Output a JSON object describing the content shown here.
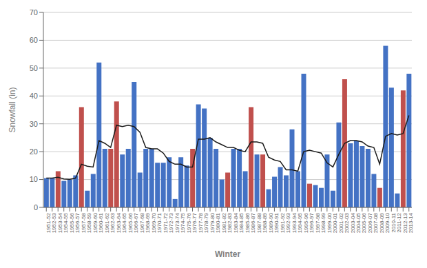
{
  "chart_data": {
    "type": "bar",
    "xlabel": "Winter",
    "ylabel": "Snowfall (in)",
    "categories": [
      "1951-52",
      "1952-53",
      "1953-54",
      "1954-55",
      "1955-56",
      "1956-57",
      "1957-58",
      "1958-59",
      "1959-60",
      "1960-61",
      "1961-62",
      "1962-63",
      "1963-64",
      "1964-65",
      "1965-66",
      "1966-67",
      "1967-68",
      "1968-69",
      "1969-70",
      "1970-71",
      "1971-72",
      "1972-73",
      "1973-74",
      "1974-75",
      "1975-76",
      "1976-77",
      "1977-78",
      "1978-79",
      "1979-80",
      "1980-81",
      "1981-82",
      "1982-83",
      "1983-84",
      "1984-85",
      "1985-86",
      "1986-87",
      "1987-88",
      "1988-89",
      "1989-90",
      "1990-91",
      "1991-92",
      "1992-93",
      "1993-94",
      "1994-95",
      "1995-96",
      "1996-97",
      "1997-98",
      "1998-99",
      "1999-00",
      "2000-01",
      "2001-02",
      "2002-03",
      "2003-04",
      "2004-05",
      "2005-06",
      "2006-07",
      "2007-08",
      "2008-09",
      "2009-10",
      "2010-11",
      "2011-12",
      "2012-13",
      "2013-14"
    ],
    "series": [
      {
        "type": "bar",
        "values": [
          10.5,
          10.5,
          13.0,
          9.5,
          10.0,
          11.5,
          36.0,
          6.0,
          12.0,
          52.0,
          21.0,
          21.0,
          38.0,
          19.0,
          21.0,
          45.0,
          12.5,
          21.0,
          21.0,
          16.0,
          16.0,
          18.0,
          3.0,
          18.0,
          15.0,
          21.0,
          37.0,
          35.5,
          25.0,
          21.0,
          10.0,
          12.5,
          21.0,
          21.0,
          13.0,
          36.0,
          19.0,
          19.0,
          6.5,
          11.0,
          14.5,
          11.5,
          28.0,
          13.0,
          48.0,
          8.5,
          8.0,
          7.0,
          19.0,
          6.0,
          30.5,
          46.0,
          23.0,
          24.0,
          22.0,
          21.0,
          12.0,
          7.0,
          58.0,
          43.0,
          5.0,
          42.0,
          48.0
        ],
        "colors": [
          "#4472C4",
          "#4472C4",
          "#C0504D",
          "#4472C4",
          "#4472C4",
          "#4472C4",
          "#C0504D",
          "#4472C4",
          "#4472C4",
          "#4472C4",
          "#4472C4",
          "#C0504D",
          "#C0504D",
          "#4472C4",
          "#4472C4",
          "#4472C4",
          "#4472C4",
          "#4472C4",
          "#4472C4",
          "#4472C4",
          "#4472C4",
          "#4472C4",
          "#4472C4",
          "#4472C4",
          "#4472C4",
          "#C0504D",
          "#4472C4",
          "#4472C4",
          "#4472C4",
          "#4472C4",
          "#4472C4",
          "#C0504D",
          "#4472C4",
          "#4472C4",
          "#4472C4",
          "#C0504D",
          "#4472C4",
          "#C0504D",
          "#4472C4",
          "#4472C4",
          "#4472C4",
          "#4472C4",
          "#4472C4",
          "#4472C4",
          "#4472C4",
          "#C0504D",
          "#4472C4",
          "#4472C4",
          "#4472C4",
          "#4472C4",
          "#4472C4",
          "#C0504D",
          "#4472C4",
          "#4472C4",
          "#4472C4",
          "#4472C4",
          "#4472C4",
          "#C0504D",
          "#4472C4",
          "#4472C4",
          "#4472C4",
          "#C0504D",
          "#4472C4"
        ]
      },
      {
        "type": "line",
        "color": "#1a1a1a",
        "values": [
          10.5,
          10.5,
          10.8,
          10.2,
          10.1,
          10.5,
          15.5,
          14.8,
          14.5,
          24.0,
          23.0,
          21.5,
          29.5,
          29.0,
          29.5,
          29.0,
          27.0,
          21.5,
          21.0,
          21.0,
          19.5,
          16.5,
          15.5,
          15.5,
          14.5,
          14.5,
          24.5,
          24.5,
          25.0,
          23.5,
          22.5,
          21.5,
          21.5,
          20.5,
          20.0,
          23.5,
          23.5,
          23.0,
          18.0,
          17.0,
          16.5,
          13.5,
          13.5,
          13.0,
          20.0,
          20.5,
          20.0,
          19.5,
          16.0,
          14.5,
          19.0,
          23.0,
          24.0,
          24.0,
          23.5,
          22.0,
          21.5,
          15.5,
          25.5,
          26.5,
          26.0,
          26.5,
          33.0
        ]
      }
    ],
    "ylim": [
      0,
      70
    ],
    "yticks": [
      0,
      10,
      20,
      30,
      40,
      50,
      60,
      70
    ],
    "grid": true
  }
}
